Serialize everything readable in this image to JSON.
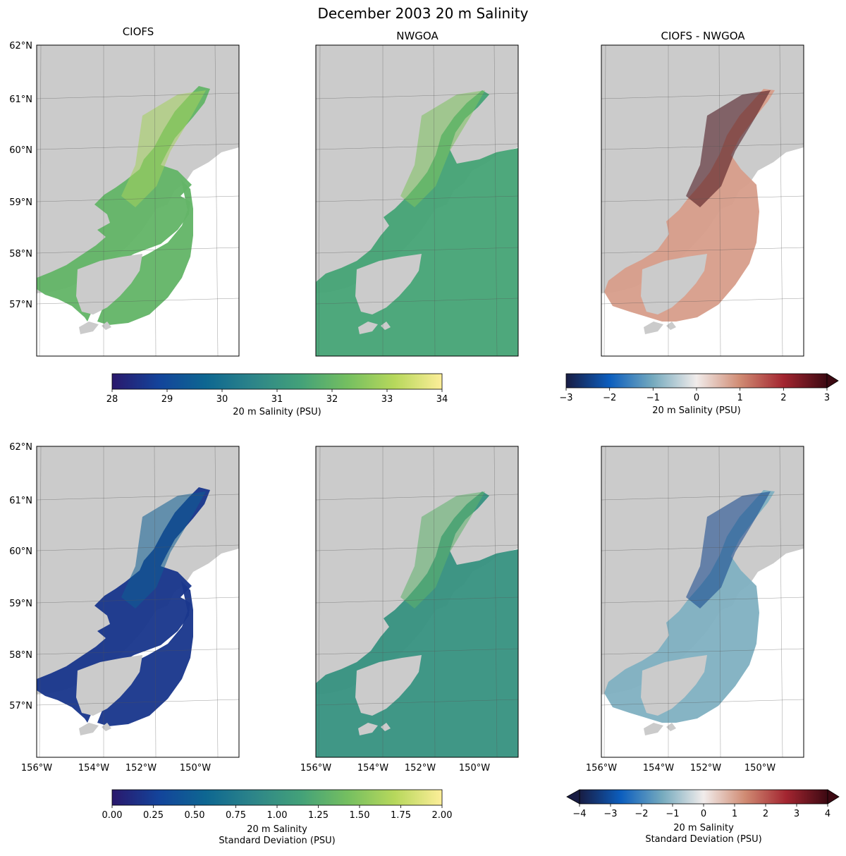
{
  "chart_data": {
    "type": "heatmap",
    "title": "December 2003 20 m Salinity",
    "panel_titles": [
      "CIOFS",
      "NWGOA",
      "CIOFS - NWGOA"
    ],
    "map": {
      "lat_ticks": [
        "62°N",
        "61°N",
        "60°N",
        "59°N",
        "58°N",
        "57°N"
      ],
      "lat_values": [
        62,
        61,
        60,
        59,
        58,
        57
      ],
      "lon_ticks": [
        "156°W",
        "154°W",
        "152°W",
        "150°W"
      ],
      "lon_values": [
        -156,
        -154,
        -152,
        -150
      ],
      "land_color": "#cbcbcb",
      "ocean_mask_color": "#ffffff"
    },
    "rows": [
      {
        "name": "mean",
        "panels": [
          {
            "title": "CIOFS",
            "colormap": "haline",
            "dominant_value": 32.0
          },
          {
            "title": "NWGOA",
            "colormap": "haline",
            "dominant_value": 31.5
          },
          {
            "title": "CIOFS - NWGOA",
            "colormap": "balance",
            "dominant_value": 0.8
          }
        ],
        "colorbars": [
          {
            "label": "20 m Salinity (PSU)",
            "vmin": 28,
            "vmax": 34,
            "ticks": [
              "28",
              "29",
              "30",
              "31",
              "32",
              "33",
              "34"
            ],
            "tick_values": [
              28,
              29,
              30,
              31,
              32,
              33,
              34
            ],
            "extend": "neither",
            "colormap": "haline"
          },
          {
            "label": "20 m Salinity (PSU)",
            "vmin": -3,
            "vmax": 3,
            "ticks": [
              "−3",
              "−2",
              "−1",
              "0",
              "1",
              "2",
              "3"
            ],
            "tick_values": [
              -3,
              -2,
              -1,
              0,
              1,
              2,
              3
            ],
            "extend": "max",
            "colormap": "balance"
          }
        ]
      },
      {
        "name": "std",
        "panels": [
          {
            "title": "",
            "colormap": "haline",
            "dominant_value": 0.2
          },
          {
            "title": "",
            "colormap": "haline",
            "dominant_value": 1.0
          },
          {
            "title": "",
            "colormap": "balance",
            "dominant_value": -1.2
          }
        ],
        "colorbars": [
          {
            "label_line1": "20 m Salinity",
            "label_line2": "Standard Deviation (PSU)",
            "vmin": 0.0,
            "vmax": 2.0,
            "ticks": [
              "0.00",
              "0.25",
              "0.50",
              "0.75",
              "1.00",
              "1.25",
              "1.50",
              "1.75",
              "2.00"
            ],
            "tick_values": [
              0.0,
              0.25,
              0.5,
              0.75,
              1.0,
              1.25,
              1.5,
              1.75,
              2.0
            ],
            "extend": "neither",
            "colormap": "haline"
          },
          {
            "label_line1": "20 m Salinity",
            "label_line2": "Standard Deviation (PSU)",
            "vmin": -4,
            "vmax": 4,
            "ticks": [
              "−4",
              "−3",
              "−2",
              "−1",
              "0",
              "1",
              "2",
              "3",
              "4"
            ],
            "tick_values": [
              -4,
              -3,
              -2,
              -1,
              0,
              1,
              2,
              3,
              4
            ],
            "extend": "both",
            "colormap": "balance"
          }
        ]
      }
    ],
    "colormaps": {
      "haline": [
        "#2a186c",
        "#13449b",
        "#0e6791",
        "#2d8589",
        "#43a179",
        "#75bf60",
        "#b7d85c",
        "#fdee99"
      ],
      "balance": [
        "#181c43",
        "#0c5ebe",
        "#75aabe",
        "#f1eceb",
        "#d08b73",
        "#a32530",
        "#3c0912"
      ]
    }
  }
}
